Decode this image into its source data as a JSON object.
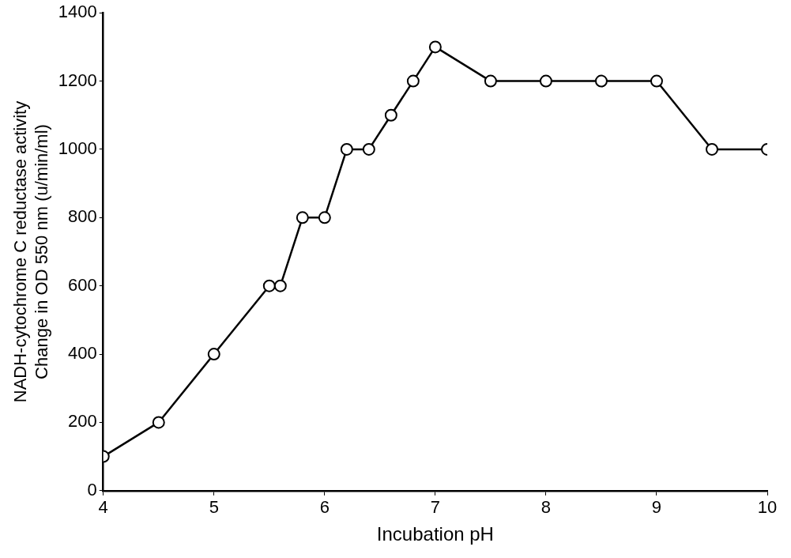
{
  "chart_data": {
    "type": "line",
    "xlabel": "Incubation pH",
    "ylabel": "NADH-cytochrome C reductase activity\nChange in OD 550 nm (u/min/ml)",
    "x": [
      4,
      4.5,
      5,
      5.5,
      5.6,
      5.8,
      6,
      6.2,
      6.4,
      6.6,
      6.8,
      7,
      7.5,
      8,
      8.5,
      9,
      9.5,
      10
    ],
    "values": [
      100,
      200,
      400,
      600,
      600,
      800,
      800,
      1000,
      1000,
      1100,
      1200,
      1300,
      1200,
      1200,
      1200,
      1200,
      1000,
      1000
    ],
    "color": "#000000",
    "marker": "circle",
    "line_style": "solid",
    "grid": false,
    "legend": false,
    "xlim": [
      4,
      10
    ],
    "xticks": [
      4,
      5,
      6,
      7,
      8,
      9,
      10
    ],
    "ylim": [
      0,
      1400
    ],
    "yticks": [
      0,
      200,
      400,
      600,
      800,
      1000,
      1200,
      1400
    ]
  }
}
